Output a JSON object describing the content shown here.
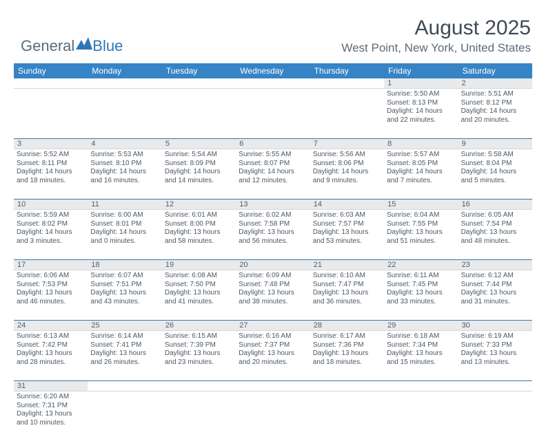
{
  "brand": {
    "word1": "General",
    "word2": "Blue"
  },
  "title": "August 2025",
  "location": "West Point, New York, United States",
  "colors": {
    "header_bg": "#3684c6",
    "header_text": "#ffffff",
    "daynum_bg": "#e8eaec",
    "text": "#4d5760",
    "border": "#3a77a8"
  },
  "day_labels": [
    "Sunday",
    "Monday",
    "Tuesday",
    "Wednesday",
    "Thursday",
    "Friday",
    "Saturday"
  ],
  "weeks": [
    {
      "nums": [
        "",
        "",
        "",
        "",
        "",
        "1",
        "2"
      ],
      "cells": [
        null,
        null,
        null,
        null,
        null,
        {
          "sunrise": "5:50 AM",
          "sunset": "8:13 PM",
          "daylight": "14 hours and 22 minutes."
        },
        {
          "sunrise": "5:51 AM",
          "sunset": "8:12 PM",
          "daylight": "14 hours and 20 minutes."
        }
      ]
    },
    {
      "nums": [
        "3",
        "4",
        "5",
        "6",
        "7",
        "8",
        "9"
      ],
      "cells": [
        {
          "sunrise": "5:52 AM",
          "sunset": "8:11 PM",
          "daylight": "14 hours and 18 minutes."
        },
        {
          "sunrise": "5:53 AM",
          "sunset": "8:10 PM",
          "daylight": "14 hours and 16 minutes."
        },
        {
          "sunrise": "5:54 AM",
          "sunset": "8:09 PM",
          "daylight": "14 hours and 14 minutes."
        },
        {
          "sunrise": "5:55 AM",
          "sunset": "8:07 PM",
          "daylight": "14 hours and 12 minutes."
        },
        {
          "sunrise": "5:56 AM",
          "sunset": "8:06 PM",
          "daylight": "14 hours and 9 minutes."
        },
        {
          "sunrise": "5:57 AM",
          "sunset": "8:05 PM",
          "daylight": "14 hours and 7 minutes."
        },
        {
          "sunrise": "5:58 AM",
          "sunset": "8:04 PM",
          "daylight": "14 hours and 5 minutes."
        }
      ]
    },
    {
      "nums": [
        "10",
        "11",
        "12",
        "13",
        "14",
        "15",
        "16"
      ],
      "cells": [
        {
          "sunrise": "5:59 AM",
          "sunset": "8:02 PM",
          "daylight": "14 hours and 3 minutes."
        },
        {
          "sunrise": "6:00 AM",
          "sunset": "8:01 PM",
          "daylight": "14 hours and 0 minutes."
        },
        {
          "sunrise": "6:01 AM",
          "sunset": "8:00 PM",
          "daylight": "13 hours and 58 minutes."
        },
        {
          "sunrise": "6:02 AM",
          "sunset": "7:58 PM",
          "daylight": "13 hours and 56 minutes."
        },
        {
          "sunrise": "6:03 AM",
          "sunset": "7:57 PM",
          "daylight": "13 hours and 53 minutes."
        },
        {
          "sunrise": "6:04 AM",
          "sunset": "7:55 PM",
          "daylight": "13 hours and 51 minutes."
        },
        {
          "sunrise": "6:05 AM",
          "sunset": "7:54 PM",
          "daylight": "13 hours and 48 minutes."
        }
      ]
    },
    {
      "nums": [
        "17",
        "18",
        "19",
        "20",
        "21",
        "22",
        "23"
      ],
      "cells": [
        {
          "sunrise": "6:06 AM",
          "sunset": "7:53 PM",
          "daylight": "13 hours and 46 minutes."
        },
        {
          "sunrise": "6:07 AM",
          "sunset": "7:51 PM",
          "daylight": "13 hours and 43 minutes."
        },
        {
          "sunrise": "6:08 AM",
          "sunset": "7:50 PM",
          "daylight": "13 hours and 41 minutes."
        },
        {
          "sunrise": "6:09 AM",
          "sunset": "7:48 PM",
          "daylight": "13 hours and 38 minutes."
        },
        {
          "sunrise": "6:10 AM",
          "sunset": "7:47 PM",
          "daylight": "13 hours and 36 minutes."
        },
        {
          "sunrise": "6:11 AM",
          "sunset": "7:45 PM",
          "daylight": "13 hours and 33 minutes."
        },
        {
          "sunrise": "6:12 AM",
          "sunset": "7:44 PM",
          "daylight": "13 hours and 31 minutes."
        }
      ]
    },
    {
      "nums": [
        "24",
        "25",
        "26",
        "27",
        "28",
        "29",
        "30"
      ],
      "cells": [
        {
          "sunrise": "6:13 AM",
          "sunset": "7:42 PM",
          "daylight": "13 hours and 28 minutes."
        },
        {
          "sunrise": "6:14 AM",
          "sunset": "7:41 PM",
          "daylight": "13 hours and 26 minutes."
        },
        {
          "sunrise": "6:15 AM",
          "sunset": "7:39 PM",
          "daylight": "13 hours and 23 minutes."
        },
        {
          "sunrise": "6:16 AM",
          "sunset": "7:37 PM",
          "daylight": "13 hours and 20 minutes."
        },
        {
          "sunrise": "6:17 AM",
          "sunset": "7:36 PM",
          "daylight": "13 hours and 18 minutes."
        },
        {
          "sunrise": "6:18 AM",
          "sunset": "7:34 PM",
          "daylight": "13 hours and 15 minutes."
        },
        {
          "sunrise": "6:19 AM",
          "sunset": "7:33 PM",
          "daylight": "13 hours and 13 minutes."
        }
      ]
    },
    {
      "nums": [
        "31",
        "",
        "",
        "",
        "",
        "",
        ""
      ],
      "cells": [
        {
          "sunrise": "6:20 AM",
          "sunset": "7:31 PM",
          "daylight": "13 hours and 10 minutes."
        },
        null,
        null,
        null,
        null,
        null,
        null
      ]
    }
  ]
}
